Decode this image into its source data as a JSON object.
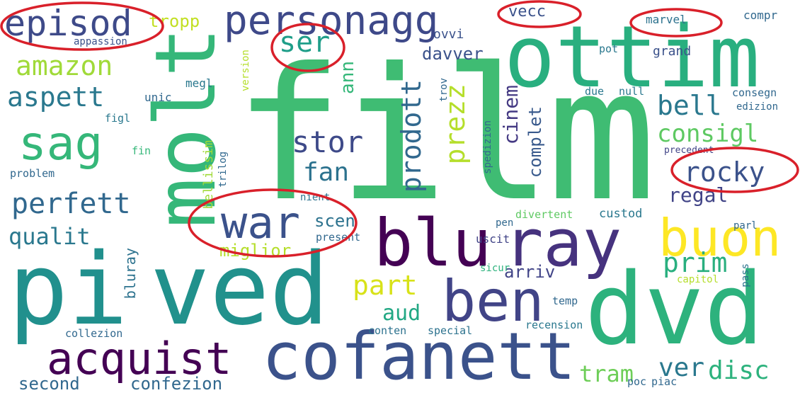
{
  "palette": {
    "dark_purple": "#440154",
    "indigo": "#3b528b",
    "teal": "#21918c",
    "green": "#35b779",
    "lime": "#90d743",
    "yellow": "#fde725",
    "annotation_red": "#d9202a"
  },
  "words": {
    "film": "film",
    "moLt": "molt",
    "ottim": "ottim",
    "pi": "pi",
    "ved": "ved",
    "dvd": "dvd",
    "cofanett": "cofanett",
    "blu": "blu",
    "ray": "ray",
    "buon": "buon",
    "ben": "ben",
    "acquist": "acquist",
    "personagg": "personagg",
    "episod": "episod",
    "sag": "sag",
    "war": "war",
    "amazon": "amazon",
    "aspett": "aspett",
    "perfett": "perfett",
    "qualit": "qualit",
    "stor": "stor",
    "fan": "fan",
    "prodott": "prodott",
    "prezz": "prezz",
    "cinem": "cinem",
    "complet": "complet",
    "bell": "bell",
    "consigl": "consigl",
    "rocky": "rocky",
    "regal": "regal",
    "prim": "prim",
    "part": "part",
    "aud": "aud",
    "arriv": "arriv",
    "tram": "tram",
    "ver": "ver",
    "disc": "disc",
    "second": "second",
    "confezion": "confezion",
    "ser": "ser",
    "vecc": "vecc",
    "marvel": "marvel",
    "tropp": "tropp",
    "davver": "davver",
    "ovvi": "ovvi",
    "ann": "ann",
    "grand": "grand",
    "compr": "compr",
    "pot": "pot",
    "megl": "megl",
    "unic": "unic",
    "figl": "figl",
    "fin": "fin",
    "appassion": "appassion",
    "bellissim": "bellissim",
    "trilog": "trilog",
    "version": "version",
    "miglior": "miglior",
    "bluray": "bluray",
    "scen": "scen",
    "nient": "nient",
    "present": "present",
    "uscit": "uscit",
    "pen": "pen",
    "divertent": "divertent",
    "custod": "custod",
    "sicur": "sicur",
    "temp": "temp",
    "capitol": "capitol",
    "recension": "recension",
    "conten": "conten",
    "special": "special",
    "collezion": "collezion",
    "poc": "poc",
    "piac": "piac",
    "due": "due",
    "null": "null",
    "consegn": "consegn",
    "edizion": "edizion",
    "precedent": "precedent",
    "spedizion": "spedizion",
    "trov": "trov",
    "problem": "problem",
    "parl": "parl",
    "pass": "pass"
  }
}
